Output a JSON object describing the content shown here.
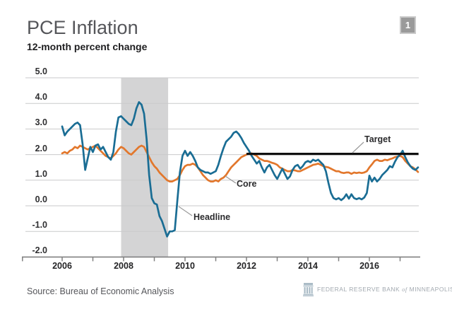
{
  "page": {
    "title": "PCE Inflation",
    "subtitle": "12-month percent change",
    "slide_number": "1",
    "source": "Source: Bureau of Economic Analysis",
    "logo": {
      "bank": "FEDERAL RESERVE BANK",
      "conjunction": "of",
      "city": "MINNEAPOLIS"
    }
  },
  "colors": {
    "headline": "#1a6d94",
    "core": "#e2772c",
    "target": "#111111",
    "gridline": "#c9cacb",
    "axis": "#808080",
    "recession_band": "#d4d4d5",
    "callout": "#999999",
    "badge_bg": "#9a9a9a",
    "title_text": "#55565a"
  },
  "chart_data": {
    "type": "line",
    "title": "PCE Inflation",
    "subtitle": "12-month percent change",
    "frequency": "monthly",
    "x_start": 2006.0,
    "points_per_year": 12,
    "x_axis": {
      "tick_years": [
        2006,
        2007,
        2008,
        2009,
        2010,
        2011,
        2012,
        2013,
        2014,
        2015,
        2016,
        2017
      ],
      "label_years": [
        "2006",
        "2008",
        "2010",
        "2012",
        "2014",
        "2016"
      ]
    },
    "y_axis": {
      "tick_labels": [
        "5.0",
        "4.0",
        "3.0",
        "2.0",
        "1.0",
        "0.0",
        "-1.0",
        "-2.0"
      ],
      "min": -2.0,
      "max": 5.0
    },
    "grid": "horizontal",
    "legend": "inline-annotations",
    "recession_band": {
      "start_year": 2007.92,
      "end_year": 2009.45
    },
    "target_line": {
      "label": "Target",
      "value": 2.0,
      "start_year": 2012.0,
      "end_year": 2017.6
    },
    "annotations": [
      {
        "label": "Target",
        "attached_to": "target-line"
      },
      {
        "label": "Core",
        "attached_to": "core-series"
      },
      {
        "label": "Headline",
        "attached_to": "headline-series"
      }
    ],
    "series": [
      {
        "name": "Core",
        "color": "#e2772c",
        "values": [
          2.05,
          2.1,
          2.05,
          2.15,
          2.2,
          2.3,
          2.25,
          2.35,
          2.3,
          2.25,
          2.2,
          2.25,
          2.3,
          2.35,
          2.25,
          2.15,
          2.05,
          1.95,
          1.9,
          1.85,
          1.95,
          2.05,
          2.2,
          2.3,
          2.25,
          2.15,
          2.05,
          2.0,
          2.1,
          2.2,
          2.3,
          2.35,
          2.3,
          2.1,
          1.9,
          1.7,
          1.55,
          1.45,
          1.3,
          1.2,
          1.1,
          1.0,
          0.95,
          0.95,
          1.0,
          1.05,
          1.2,
          1.4,
          1.55,
          1.6,
          1.6,
          1.65,
          1.6,
          1.5,
          1.35,
          1.2,
          1.1,
          1.0,
          0.95,
          0.95,
          1.0,
          0.95,
          1.05,
          1.1,
          1.2,
          1.35,
          1.5,
          1.6,
          1.7,
          1.8,
          1.9,
          1.95,
          2.0,
          2.05,
          2.05,
          2.0,
          1.95,
          1.85,
          1.8,
          1.75,
          1.75,
          1.72,
          1.68,
          1.65,
          1.6,
          1.5,
          1.45,
          1.4,
          1.35,
          1.35,
          1.4,
          1.38,
          1.35,
          1.35,
          1.4,
          1.45,
          1.5,
          1.55,
          1.6,
          1.62,
          1.65,
          1.6,
          1.55,
          1.52,
          1.5,
          1.45,
          1.4,
          1.35,
          1.35,
          1.3,
          1.28,
          1.3,
          1.3,
          1.25,
          1.3,
          1.28,
          1.3,
          1.28,
          1.3,
          1.35,
          1.5,
          1.62,
          1.75,
          1.8,
          1.75,
          1.75,
          1.8,
          1.78,
          1.82,
          1.85,
          1.9,
          1.92,
          1.95,
          1.9,
          1.75,
          1.65,
          1.55,
          1.5,
          1.42,
          1.32
        ]
      },
      {
        "name": "Headline",
        "color": "#1a6d94",
        "values": [
          3.1,
          2.75,
          2.9,
          3.0,
          3.1,
          3.2,
          3.25,
          3.15,
          2.4,
          1.4,
          1.85,
          2.3,
          2.1,
          2.35,
          2.4,
          2.2,
          2.3,
          2.1,
          1.9,
          1.8,
          2.1,
          2.9,
          3.45,
          3.5,
          3.4,
          3.3,
          3.2,
          3.15,
          3.4,
          3.8,
          4.05,
          3.95,
          3.6,
          2.6,
          1.2,
          0.3,
          0.1,
          0.05,
          -0.4,
          -0.6,
          -0.9,
          -1.2,
          -1.0,
          -1.0,
          -0.95,
          0.2,
          1.3,
          1.95,
          2.15,
          1.95,
          2.1,
          1.95,
          1.75,
          1.5,
          1.4,
          1.35,
          1.3,
          1.3,
          1.25,
          1.3,
          1.35,
          1.6,
          1.95,
          2.25,
          2.5,
          2.6,
          2.7,
          2.85,
          2.9,
          2.8,
          2.65,
          2.45,
          2.3,
          2.15,
          1.95,
          1.8,
          1.65,
          1.75,
          1.5,
          1.3,
          1.5,
          1.6,
          1.4,
          1.2,
          1.05,
          1.25,
          1.45,
          1.25,
          1.05,
          1.15,
          1.4,
          1.55,
          1.6,
          1.45,
          1.55,
          1.7,
          1.75,
          1.7,
          1.8,
          1.75,
          1.8,
          1.7,
          1.6,
          1.35,
          0.9,
          0.5,
          0.3,
          0.25,
          0.3,
          0.22,
          0.3,
          0.45,
          0.28,
          0.45,
          0.3,
          0.26,
          0.3,
          0.25,
          0.32,
          0.5,
          1.18,
          0.95,
          1.1,
          0.95,
          1.05,
          1.2,
          1.3,
          1.4,
          1.55,
          1.5,
          1.72,
          1.9,
          2.0,
          2.15,
          1.9,
          1.7,
          1.55,
          1.45,
          1.4,
          1.5
        ]
      }
    ]
  }
}
